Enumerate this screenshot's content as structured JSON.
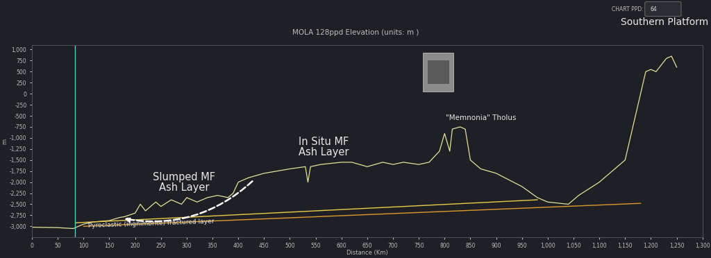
{
  "chart_data": {
    "type": "line",
    "title": "MOLA 128ppd Elevation (units: m )",
    "x_label": "Distance (Km)",
    "y_label": "m",
    "controls": {
      "label": "CHART PPD:",
      "value": "64"
    },
    "xlim": [
      0,
      1300
    ],
    "xticks": [
      0,
      50,
      100,
      150,
      200,
      250,
      300,
      350,
      400,
      450,
      500,
      550,
      600,
      650,
      700,
      750,
      800,
      850,
      900,
      950,
      {
        "value": 1000,
        "label": "1,000"
      },
      {
        "value": 1050,
        "label": "1,050"
      },
      {
        "value": 1100,
        "label": "1,100"
      },
      {
        "value": 1150,
        "label": "1,150"
      },
      {
        "value": 1200,
        "label": "1,200"
      },
      {
        "value": 1250,
        "label": "1,250"
      },
      {
        "value": 1300,
        "label": "1,300"
      }
    ],
    "ylim": [
      -3250,
      1100
    ],
    "yticks": [
      {
        "value": 1000,
        "label": "1,000"
      },
      750,
      500,
      250,
      0,
      -250,
      -500,
      -750,
      {
        "value": -1000,
        "label": "-1,000"
      },
      {
        "value": -1250,
        "label": "-1,250"
      },
      {
        "value": -1500,
        "label": "-1,500"
      },
      {
        "value": -1750,
        "label": "-1,750"
      },
      {
        "value": -2000,
        "label": "-2,000"
      },
      {
        "value": -2250,
        "label": "-2,250"
      },
      {
        "value": -2500,
        "label": "-2,500"
      },
      {
        "value": -2750,
        "label": "-2,750"
      },
      {
        "value": -3000,
        "label": "-3,000"
      }
    ],
    "grid": false,
    "color": "#e3e39a",
    "x": [
      0,
      50,
      80,
      100,
      120,
      150,
      170,
      180,
      200,
      210,
      220,
      240,
      250,
      270,
      290,
      300,
      320,
      340,
      360,
      380,
      390,
      400,
      420,
      450,
      500,
      530,
      535,
      540,
      560,
      600,
      620,
      650,
      680,
      700,
      720,
      750,
      770,
      790,
      800,
      810,
      815,
      830,
      840,
      850,
      870,
      900,
      950,
      980,
      1000,
      1040,
      1060,
      1100,
      1150,
      1170,
      1190,
      1200,
      1210,
      1230,
      1240,
      1250
    ],
    "values": [
      -3020,
      -3030,
      -3050,
      -2950,
      -2900,
      -2870,
      -2800,
      -2780,
      -2700,
      -2500,
      -2650,
      -2450,
      -2550,
      -2400,
      -2500,
      -2350,
      -2450,
      -2350,
      -2300,
      -2350,
      -2250,
      -2000,
      -1900,
      -1800,
      -1700,
      -1650,
      -2000,
      -1650,
      -1600,
      -1550,
      -1550,
      -1650,
      -1550,
      -1600,
      -1550,
      -1600,
      -1550,
      -1300,
      -900,
      -1300,
      -800,
      -750,
      -800,
      -1500,
      -1700,
      -1800,
      -2100,
      -2350,
      -2450,
      -2500,
      -2300,
      -2000,
      -1500,
      -500,
      500,
      550,
      500,
      800,
      850,
      600
    ],
    "cursor_x": 83,
    "lines": [
      {
        "x": [
          85,
          980
        ],
        "values": [
          -2920,
          -2400
        ],
        "color": "#e8cc4a"
      },
      {
        "x": [
          100,
          1180
        ],
        "values": [
          -3000,
          -2480
        ],
        "color": "#d99a2e"
      }
    ],
    "arrow": {
      "from": [
        430,
        -1950
      ],
      "to": [
        175,
        -2820
      ],
      "color": "#ffffff",
      "line_style": "dashed"
    },
    "annotations": [
      "Southern Platform",
      "\"Memnonia\" Tholus",
      "In Situ MF\nAsh Layer",
      "Slumped MF\nAsh Layer",
      "Pyroclastic (ingnimbrite) fractured layer"
    ]
  }
}
